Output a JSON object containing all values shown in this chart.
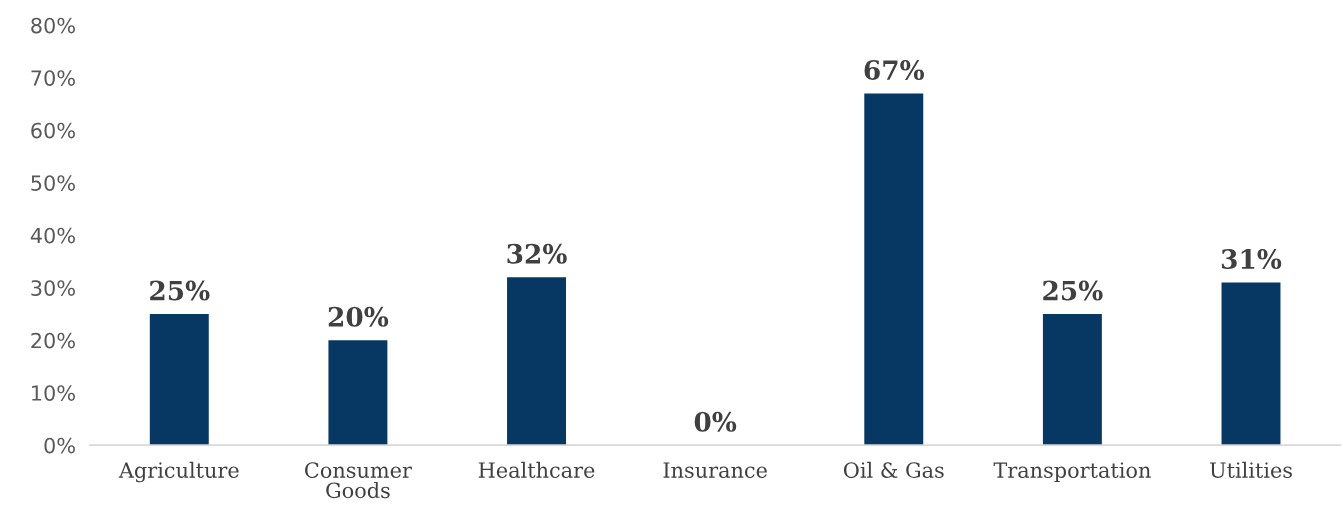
{
  "chart_data": {
    "type": "bar",
    "categories": [
      "Agriculture",
      "Consumer\nGoods",
      "Healthcare",
      "Insurance",
      "Oil & Gas",
      "Transportation",
      "Utilities"
    ],
    "values": [
      25,
      20,
      32,
      0,
      67,
      25,
      31
    ],
    "value_labels": [
      "25%",
      "20%",
      "32%",
      "0%",
      "67%",
      "25%",
      "31%"
    ],
    "color": "#073763",
    "ylim": [
      0,
      80
    ],
    "yticks": [
      {
        "value": 0,
        "label": "0%"
      },
      {
        "value": 10,
        "label": "10%"
      },
      {
        "value": 20,
        "label": "20%"
      },
      {
        "value": 30,
        "label": "30%"
      },
      {
        "value": 40,
        "label": "40%"
      },
      {
        "value": 50,
        "label": "50%"
      },
      {
        "value": 60,
        "label": "60%"
      },
      {
        "value": 70,
        "label": "70%"
      },
      {
        "value": 80,
        "label": "80%"
      }
    ],
    "grid": false,
    "legend": false
  }
}
